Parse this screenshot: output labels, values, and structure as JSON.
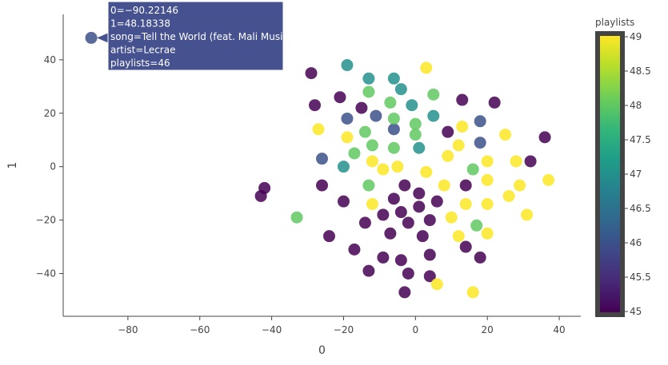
{
  "chart_data": {
    "type": "scatter",
    "xlabel": "0",
    "ylabel": "1",
    "xlim": [
      -98,
      46
    ],
    "ylim": [
      -56,
      57
    ],
    "x_ticks": [
      -80,
      -60,
      -40,
      -20,
      0,
      20,
      40
    ],
    "x_tick_labels": [
      "−80",
      "−60",
      "−40",
      "−20",
      "0",
      "20",
      "40"
    ],
    "y_ticks": [
      -40,
      -20,
      0,
      20,
      40
    ],
    "y_tick_labels": [
      "−40",
      "−20",
      "0",
      "20",
      "40"
    ],
    "grid": false,
    "colorbar": {
      "title": "playlists",
      "range": [
        45,
        49
      ],
      "ticks": [
        45,
        45.5,
        46,
        46.5,
        47,
        47.5,
        48,
        48.5,
        49
      ],
      "tick_labels": [
        "45",
        "45.5",
        "46",
        "46.5",
        "47",
        "47.5",
        "48",
        "48.5",
        "49"
      ],
      "colorscale": "viridis",
      "stops": [
        "#440154",
        "#482878",
        "#3e4989",
        "#31688e",
        "#26828e",
        "#1f9e89",
        "#35b779",
        "#6ece58",
        "#b5de2b",
        "#fde725"
      ]
    },
    "marker_opacity": 0.85,
    "points": [
      {
        "x": -90.2,
        "y": 48.2,
        "c": 46
      },
      {
        "x": -42,
        "y": -8,
        "c": 45
      },
      {
        "x": -43,
        "y": -11,
        "c": 45
      },
      {
        "x": -33,
        "y": -19,
        "c": 48
      },
      {
        "x": -29,
        "y": 35,
        "c": 45
      },
      {
        "x": -28,
        "y": 23,
        "c": 45
      },
      {
        "x": -27,
        "y": 14,
        "c": 49
      },
      {
        "x": -26,
        "y": 3,
        "c": 46
      },
      {
        "x": -26,
        "y": -7,
        "c": 45
      },
      {
        "x": -24,
        "y": -26,
        "c": 45
      },
      {
        "x": -21,
        "y": 26,
        "c": 45
      },
      {
        "x": -20,
        "y": 0,
        "c": 47
      },
      {
        "x": -20,
        "y": -13,
        "c": 45
      },
      {
        "x": -19,
        "y": 38,
        "c": 47
      },
      {
        "x": -19,
        "y": 18,
        "c": 46
      },
      {
        "x": -19,
        "y": 11,
        "c": 49
      },
      {
        "x": -17,
        "y": -31,
        "c": 45
      },
      {
        "x": -17,
        "y": 5,
        "c": 48
      },
      {
        "x": -15,
        "y": 22,
        "c": 45
      },
      {
        "x": -14,
        "y": -21,
        "c": 45
      },
      {
        "x": -14,
        "y": 13,
        "c": 48
      },
      {
        "x": -13,
        "y": 33,
        "c": 47
      },
      {
        "x": -13,
        "y": 28,
        "c": 48
      },
      {
        "x": -13,
        "y": -7,
        "c": 48
      },
      {
        "x": -13,
        "y": -39,
        "c": 45
      },
      {
        "x": -12,
        "y": 8,
        "c": 48
      },
      {
        "x": -12,
        "y": 2,
        "c": 49
      },
      {
        "x": -12,
        "y": -14,
        "c": 49
      },
      {
        "x": -11,
        "y": 19,
        "c": 46
      },
      {
        "x": -9,
        "y": -1,
        "c": 49
      },
      {
        "x": -9,
        "y": -18,
        "c": 45
      },
      {
        "x": -9,
        "y": -34,
        "c": 45
      },
      {
        "x": -7,
        "y": 24,
        "c": 48
      },
      {
        "x": -7,
        "y": -25,
        "c": 45
      },
      {
        "x": -6,
        "y": 33,
        "c": 47
      },
      {
        "x": -6,
        "y": 14,
        "c": 46
      },
      {
        "x": -6,
        "y": 7,
        "c": 48
      },
      {
        "x": -6,
        "y": 18,
        "c": 48
      },
      {
        "x": -6,
        "y": -12,
        "c": 45
      },
      {
        "x": -5,
        "y": 0,
        "c": 49
      },
      {
        "x": -4,
        "y": 29,
        "c": 47
      },
      {
        "x": -4,
        "y": -17,
        "c": 45
      },
      {
        "x": -4,
        "y": -35,
        "c": 45
      },
      {
        "x": -3,
        "y": -7,
        "c": 45
      },
      {
        "x": -3,
        "y": -47,
        "c": 45
      },
      {
        "x": -2,
        "y": -21,
        "c": 45
      },
      {
        "x": -2,
        "y": -40,
        "c": 45
      },
      {
        "x": -1,
        "y": 23,
        "c": 47
      },
      {
        "x": 0,
        "y": 16,
        "c": 48
      },
      {
        "x": 0,
        "y": 12,
        "c": 48
      },
      {
        "x": 1,
        "y": 7,
        "c": 47
      },
      {
        "x": 1,
        "y": -10,
        "c": 45
      },
      {
        "x": 1,
        "y": -15,
        "c": 45
      },
      {
        "x": 2,
        "y": -26,
        "c": 45
      },
      {
        "x": 3,
        "y": 37,
        "c": 49
      },
      {
        "x": 3,
        "y": -2,
        "c": 49
      },
      {
        "x": 4,
        "y": -20,
        "c": 45
      },
      {
        "x": 4,
        "y": -33,
        "c": 45
      },
      {
        "x": 4,
        "y": -41,
        "c": 45
      },
      {
        "x": 5,
        "y": 27,
        "c": 48
      },
      {
        "x": 5,
        "y": 19,
        "c": 47
      },
      {
        "x": 6,
        "y": -13,
        "c": 45
      },
      {
        "x": 6,
        "y": -44,
        "c": 49
      },
      {
        "x": 8,
        "y": -7,
        "c": 49
      },
      {
        "x": 9,
        "y": 13,
        "c": 45
      },
      {
        "x": 9,
        "y": 4,
        "c": 49
      },
      {
        "x": 10,
        "y": -19,
        "c": 49
      },
      {
        "x": 12,
        "y": 8,
        "c": 49
      },
      {
        "x": 12,
        "y": -26,
        "c": 49
      },
      {
        "x": 13,
        "y": 25,
        "c": 45
      },
      {
        "x": 13,
        "y": 15,
        "c": 49
      },
      {
        "x": 14,
        "y": -7,
        "c": 45
      },
      {
        "x": 14,
        "y": -14,
        "c": 49
      },
      {
        "x": 14,
        "y": -30,
        "c": 45
      },
      {
        "x": 16,
        "y": -1,
        "c": 48
      },
      {
        "x": 16,
        "y": -47,
        "c": 49
      },
      {
        "x": 17,
        "y": -22,
        "c": 48
      },
      {
        "x": 18,
        "y": 17,
        "c": 46
      },
      {
        "x": 18,
        "y": 9,
        "c": 46
      },
      {
        "x": 18,
        "y": -34,
        "c": 45
      },
      {
        "x": 20,
        "y": 2,
        "c": 49
      },
      {
        "x": 20,
        "y": -5,
        "c": 49
      },
      {
        "x": 20,
        "y": -14,
        "c": 49
      },
      {
        "x": 20,
        "y": -25,
        "c": 49
      },
      {
        "x": 22,
        "y": 24,
        "c": 45
      },
      {
        "x": 25,
        "y": 12,
        "c": 49
      },
      {
        "x": 26,
        "y": -11,
        "c": 49
      },
      {
        "x": 28,
        "y": 2,
        "c": 49
      },
      {
        "x": 29,
        "y": -7,
        "c": 49
      },
      {
        "x": 31,
        "y": -18,
        "c": 49
      },
      {
        "x": 32,
        "y": 2,
        "c": 45
      },
      {
        "x": 36,
        "y": 11,
        "c": 45
      },
      {
        "x": 37,
        "y": -5,
        "c": 49
      }
    ],
    "hover": {
      "lines": [
        "0=−90.22146",
        "1=48.18338",
        "song=Tell the World (feat. Mali Music)",
        "artist=Lecrae",
        "playlists=46"
      ],
      "background": "#46518f"
    }
  }
}
